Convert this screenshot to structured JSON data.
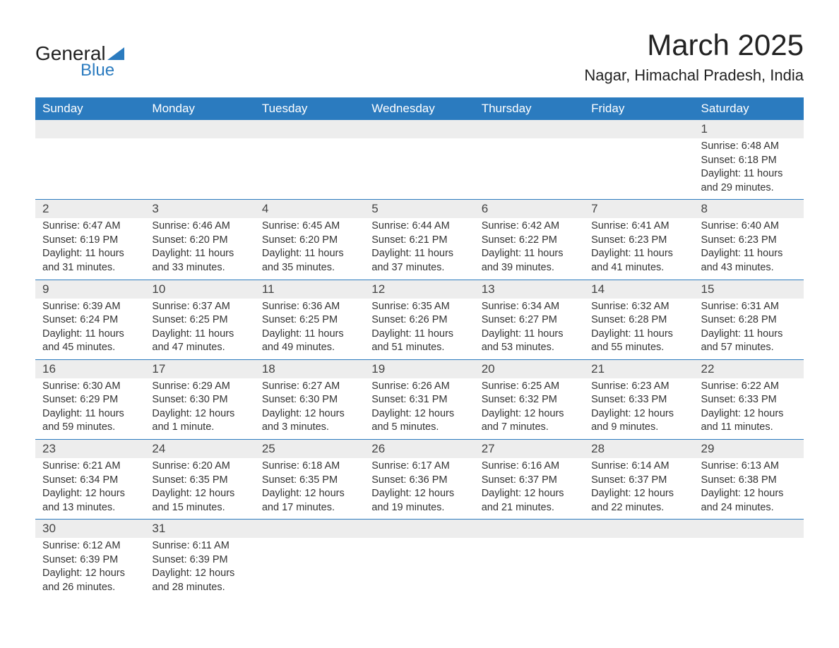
{
  "logo": {
    "line1": "General",
    "line2": "Blue",
    "shape_color": "#2b7bbf"
  },
  "title": "March 2025",
  "location": "Nagar, Himachal Pradesh, India",
  "colors": {
    "header_bg": "#2b7bbf",
    "header_text": "#ffffff",
    "daynum_bg": "#ededed",
    "row_border": "#2b7bbf",
    "text": "#333333",
    "background": "#ffffff"
  },
  "day_headers": [
    "Sunday",
    "Monday",
    "Tuesday",
    "Wednesday",
    "Thursday",
    "Friday",
    "Saturday"
  ],
  "weeks": [
    [
      null,
      null,
      null,
      null,
      null,
      null,
      {
        "n": "1",
        "sunrise": "Sunrise: 6:48 AM",
        "sunset": "Sunset: 6:18 PM",
        "daylight": "Daylight: 11 hours and 29 minutes."
      }
    ],
    [
      {
        "n": "2",
        "sunrise": "Sunrise: 6:47 AM",
        "sunset": "Sunset: 6:19 PM",
        "daylight": "Daylight: 11 hours and 31 minutes."
      },
      {
        "n": "3",
        "sunrise": "Sunrise: 6:46 AM",
        "sunset": "Sunset: 6:20 PM",
        "daylight": "Daylight: 11 hours and 33 minutes."
      },
      {
        "n": "4",
        "sunrise": "Sunrise: 6:45 AM",
        "sunset": "Sunset: 6:20 PM",
        "daylight": "Daylight: 11 hours and 35 minutes."
      },
      {
        "n": "5",
        "sunrise": "Sunrise: 6:44 AM",
        "sunset": "Sunset: 6:21 PM",
        "daylight": "Daylight: 11 hours and 37 minutes."
      },
      {
        "n": "6",
        "sunrise": "Sunrise: 6:42 AM",
        "sunset": "Sunset: 6:22 PM",
        "daylight": "Daylight: 11 hours and 39 minutes."
      },
      {
        "n": "7",
        "sunrise": "Sunrise: 6:41 AM",
        "sunset": "Sunset: 6:23 PM",
        "daylight": "Daylight: 11 hours and 41 minutes."
      },
      {
        "n": "8",
        "sunrise": "Sunrise: 6:40 AM",
        "sunset": "Sunset: 6:23 PM",
        "daylight": "Daylight: 11 hours and 43 minutes."
      }
    ],
    [
      {
        "n": "9",
        "sunrise": "Sunrise: 6:39 AM",
        "sunset": "Sunset: 6:24 PM",
        "daylight": "Daylight: 11 hours and 45 minutes."
      },
      {
        "n": "10",
        "sunrise": "Sunrise: 6:37 AM",
        "sunset": "Sunset: 6:25 PM",
        "daylight": "Daylight: 11 hours and 47 minutes."
      },
      {
        "n": "11",
        "sunrise": "Sunrise: 6:36 AM",
        "sunset": "Sunset: 6:25 PM",
        "daylight": "Daylight: 11 hours and 49 minutes."
      },
      {
        "n": "12",
        "sunrise": "Sunrise: 6:35 AM",
        "sunset": "Sunset: 6:26 PM",
        "daylight": "Daylight: 11 hours and 51 minutes."
      },
      {
        "n": "13",
        "sunrise": "Sunrise: 6:34 AM",
        "sunset": "Sunset: 6:27 PM",
        "daylight": "Daylight: 11 hours and 53 minutes."
      },
      {
        "n": "14",
        "sunrise": "Sunrise: 6:32 AM",
        "sunset": "Sunset: 6:28 PM",
        "daylight": "Daylight: 11 hours and 55 minutes."
      },
      {
        "n": "15",
        "sunrise": "Sunrise: 6:31 AM",
        "sunset": "Sunset: 6:28 PM",
        "daylight": "Daylight: 11 hours and 57 minutes."
      }
    ],
    [
      {
        "n": "16",
        "sunrise": "Sunrise: 6:30 AM",
        "sunset": "Sunset: 6:29 PM",
        "daylight": "Daylight: 11 hours and 59 minutes."
      },
      {
        "n": "17",
        "sunrise": "Sunrise: 6:29 AM",
        "sunset": "Sunset: 6:30 PM",
        "daylight": "Daylight: 12 hours and 1 minute."
      },
      {
        "n": "18",
        "sunrise": "Sunrise: 6:27 AM",
        "sunset": "Sunset: 6:30 PM",
        "daylight": "Daylight: 12 hours and 3 minutes."
      },
      {
        "n": "19",
        "sunrise": "Sunrise: 6:26 AM",
        "sunset": "Sunset: 6:31 PM",
        "daylight": "Daylight: 12 hours and 5 minutes."
      },
      {
        "n": "20",
        "sunrise": "Sunrise: 6:25 AM",
        "sunset": "Sunset: 6:32 PM",
        "daylight": "Daylight: 12 hours and 7 minutes."
      },
      {
        "n": "21",
        "sunrise": "Sunrise: 6:23 AM",
        "sunset": "Sunset: 6:33 PM",
        "daylight": "Daylight: 12 hours and 9 minutes."
      },
      {
        "n": "22",
        "sunrise": "Sunrise: 6:22 AM",
        "sunset": "Sunset: 6:33 PM",
        "daylight": "Daylight: 12 hours and 11 minutes."
      }
    ],
    [
      {
        "n": "23",
        "sunrise": "Sunrise: 6:21 AM",
        "sunset": "Sunset: 6:34 PM",
        "daylight": "Daylight: 12 hours and 13 minutes."
      },
      {
        "n": "24",
        "sunrise": "Sunrise: 6:20 AM",
        "sunset": "Sunset: 6:35 PM",
        "daylight": "Daylight: 12 hours and 15 minutes."
      },
      {
        "n": "25",
        "sunrise": "Sunrise: 6:18 AM",
        "sunset": "Sunset: 6:35 PM",
        "daylight": "Daylight: 12 hours and 17 minutes."
      },
      {
        "n": "26",
        "sunrise": "Sunrise: 6:17 AM",
        "sunset": "Sunset: 6:36 PM",
        "daylight": "Daylight: 12 hours and 19 minutes."
      },
      {
        "n": "27",
        "sunrise": "Sunrise: 6:16 AM",
        "sunset": "Sunset: 6:37 PM",
        "daylight": "Daylight: 12 hours and 21 minutes."
      },
      {
        "n": "28",
        "sunrise": "Sunrise: 6:14 AM",
        "sunset": "Sunset: 6:37 PM",
        "daylight": "Daylight: 12 hours and 22 minutes."
      },
      {
        "n": "29",
        "sunrise": "Sunrise: 6:13 AM",
        "sunset": "Sunset: 6:38 PM",
        "daylight": "Daylight: 12 hours and 24 minutes."
      }
    ],
    [
      {
        "n": "30",
        "sunrise": "Sunrise: 6:12 AM",
        "sunset": "Sunset: 6:39 PM",
        "daylight": "Daylight: 12 hours and 26 minutes."
      },
      {
        "n": "31",
        "sunrise": "Sunrise: 6:11 AM",
        "sunset": "Sunset: 6:39 PM",
        "daylight": "Daylight: 12 hours and 28 minutes."
      },
      null,
      null,
      null,
      null,
      null
    ]
  ]
}
